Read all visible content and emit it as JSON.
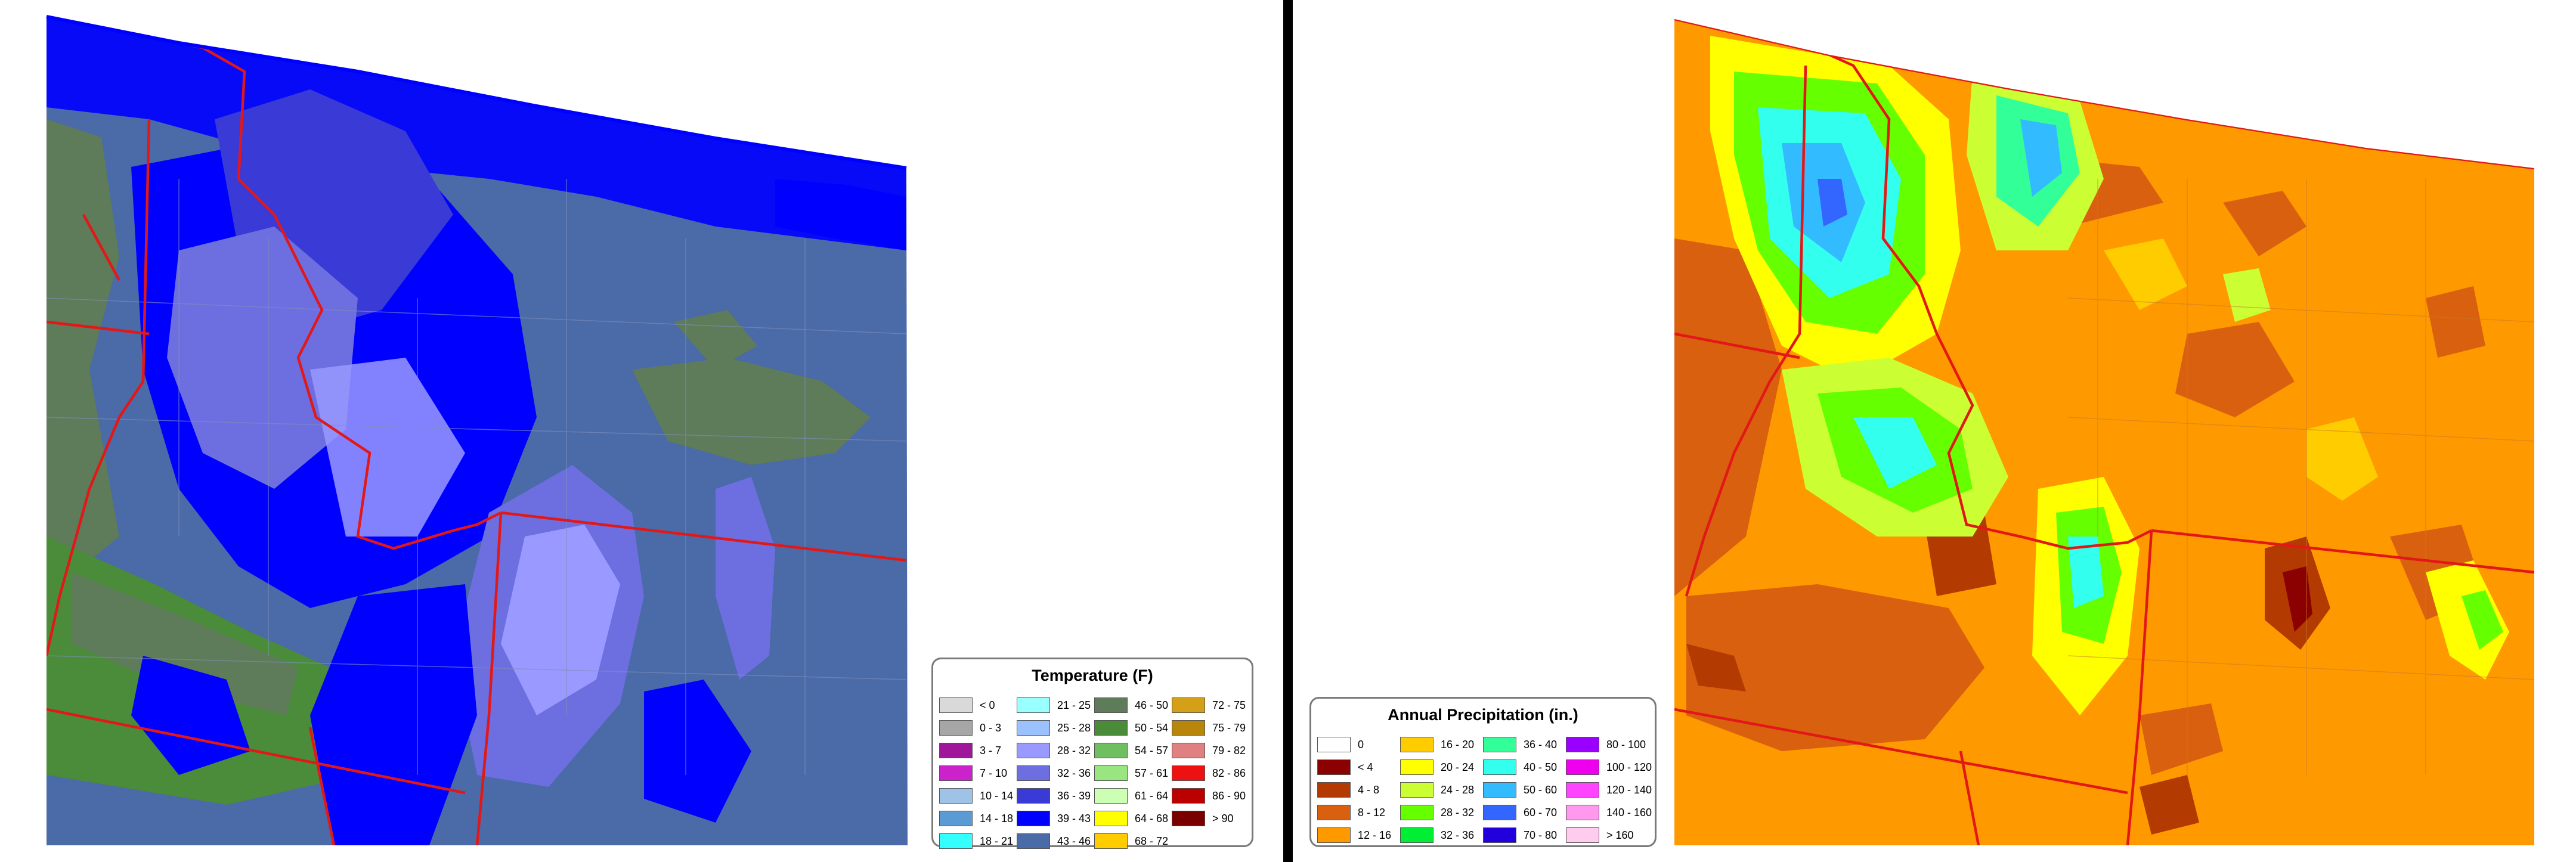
{
  "temperature_map": {
    "legend": {
      "title": "Temperature (F)",
      "items": [
        {
          "label": "< 0",
          "color": "#d9d9d9"
        },
        {
          "label": "0 - 3",
          "color": "#a6a6a6"
        },
        {
          "label": "3 - 7",
          "color": "#a0169a"
        },
        {
          "label": "7 - 10",
          "color": "#cc22cc"
        },
        {
          "label": "10 - 14",
          "color": "#9ec3e6"
        },
        {
          "label": "14 - 18",
          "color": "#5b9bd5"
        },
        {
          "label": "18 - 21",
          "color": "#33ffff"
        },
        {
          "label": "21 - 25",
          "color": "#99ffff"
        },
        {
          "label": "25 - 28",
          "color": "#9bc2ff"
        },
        {
          "label": "28 - 32",
          "color": "#9999ff"
        },
        {
          "label": "32 - 36",
          "color": "#6d6fe0"
        },
        {
          "label": "36 - 39",
          "color": "#3a3ad6"
        },
        {
          "label": "39 - 43",
          "color": "#0000ff"
        },
        {
          "label": "43 - 46",
          "color": "#4a6aa8"
        },
        {
          "label": "46 - 50",
          "color": "#5e7b5a"
        },
        {
          "label": "50 - 54",
          "color": "#4a8c3a"
        },
        {
          "label": "54 - 57",
          "color": "#6fbf60"
        },
        {
          "label": "57 - 61",
          "color": "#99e680"
        },
        {
          "label": "61 - 64",
          "color": "#ccffb3"
        },
        {
          "label": "64 - 68",
          "color": "#ffff00"
        },
        {
          "label": "68 - 72",
          "color": "#ffcc00"
        },
        {
          "label": "72 - 75",
          "color": "#d4a017"
        },
        {
          "label": "75 - 79",
          "color": "#b8860b"
        },
        {
          "label": "79 - 82",
          "color": "#e08080"
        },
        {
          "label": "82 - 86",
          "color": "#ee1111"
        },
        {
          "label": "86 - 90",
          "color": "#bb0000"
        },
        {
          "label": "> 90",
          "color": "#7a0000"
        }
      ]
    }
  },
  "precipitation_map": {
    "legend": {
      "title": "Annual Precipitation (in.)",
      "items": [
        {
          "label": "0",
          "color": "#ffffff"
        },
        {
          "label": "< 4",
          "color": "#8b0000"
        },
        {
          "label": "4 - 8",
          "color": "#b33a00"
        },
        {
          "label": "8 - 12",
          "color": "#d9600e"
        },
        {
          "label": "12 - 16",
          "color": "#ff9900"
        },
        {
          "label": "16 - 20",
          "color": "#ffcc00"
        },
        {
          "label": "20 - 24",
          "color": "#ffff00"
        },
        {
          "label": "24 - 28",
          "color": "#ccff33"
        },
        {
          "label": "28 - 32",
          "color": "#66ff00"
        },
        {
          "label": "32 - 36",
          "color": "#00ee33"
        },
        {
          "label": "36 - 40",
          "color": "#33ff99"
        },
        {
          "label": "40 - 50",
          "color": "#33ffee"
        },
        {
          "label": "50 - 60",
          "color": "#33bbff"
        },
        {
          "label": "60 - 70",
          "color": "#3366ff"
        },
        {
          "label": "70 - 80",
          "color": "#2200dd"
        },
        {
          "label": "80 - 100",
          "color": "#9900ff"
        },
        {
          "label": "100 - 120",
          "color": "#ee00ee"
        },
        {
          "label": "120 - 140",
          "color": "#ff44ff"
        },
        {
          "label": "140 - 160",
          "color": "#ff99ee"
        },
        {
          "label": "> 160",
          "color": "#ffccee"
        }
      ]
    }
  }
}
